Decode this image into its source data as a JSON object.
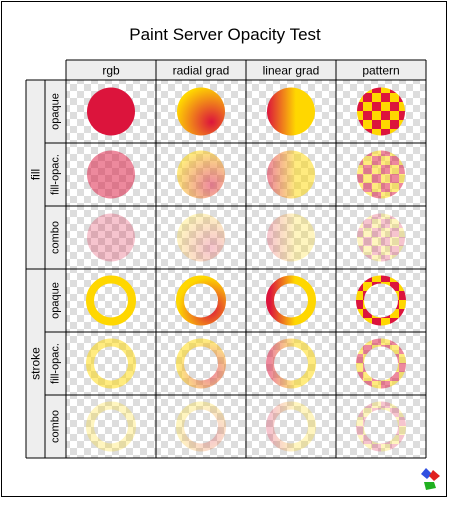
{
  "title": "Paint Server Opacity Test",
  "columns": [
    "rgb",
    "radial grad",
    "linear grad",
    "pattern"
  ],
  "groups": [
    {
      "label": "fill",
      "mode": "fill",
      "rows": [
        "opaque",
        "fill-opac.",
        "combo"
      ]
    },
    {
      "label": "stroke",
      "mode": "stroke",
      "rows": [
        "opaque",
        "fill-opac.",
        "combo"
      ]
    }
  ],
  "row_opacity": [
    1.0,
    0.5,
    0.25
  ],
  "colors": {
    "crimson": "#dc143c",
    "gold": "#ffd700",
    "checker_light": "#dddddd",
    "grid": "#000000",
    "header_bg": "#eeeeee",
    "text": "#000000"
  },
  "logo": {
    "name": "svg-logo-icon",
    "colors": [
      "#3050e0",
      "#e02020",
      "#20b020"
    ]
  }
}
